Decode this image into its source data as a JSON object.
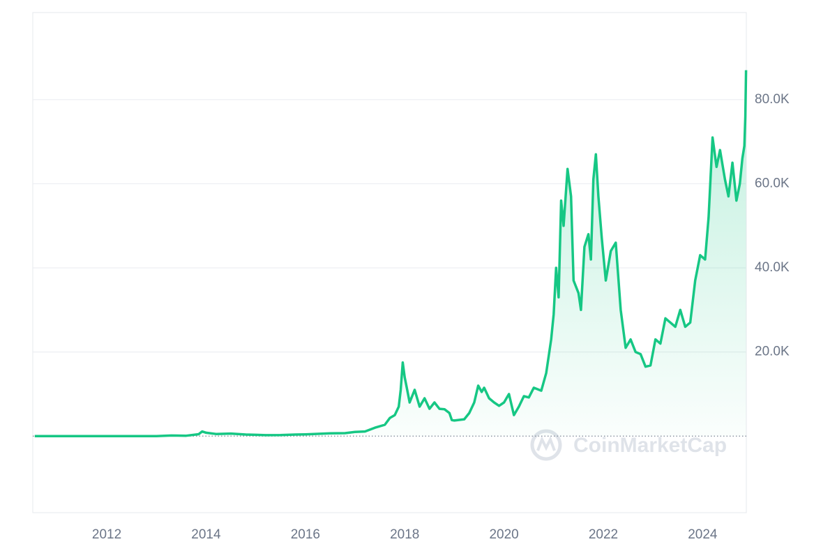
{
  "chart_data": {
    "type": "line",
    "watermark": "CoinMarketCap",
    "x": [
      2010.55,
      2011.0,
      2011.45,
      2011.8,
      2012.0,
      2012.5,
      2013.0,
      2013.3,
      2013.6,
      2013.85,
      2013.92,
      2014.0,
      2014.2,
      2014.5,
      2014.8,
      2015.0,
      2015.2,
      2015.5,
      2015.8,
      2016.0,
      2016.5,
      2016.8,
      2017.0,
      2017.2,
      2017.4,
      2017.6,
      2017.7,
      2017.8,
      2017.88,
      2017.92,
      2017.96,
      2018.0,
      2018.05,
      2018.1,
      2018.2,
      2018.3,
      2018.4,
      2018.5,
      2018.6,
      2018.7,
      2018.8,
      2018.9,
      2018.95,
      2019.0,
      2019.2,
      2019.3,
      2019.4,
      2019.48,
      2019.55,
      2019.6,
      2019.7,
      2019.8,
      2019.9,
      2020.0,
      2020.1,
      2020.2,
      2020.3,
      2020.4,
      2020.5,
      2020.6,
      2020.75,
      2020.85,
      2020.95,
      2021.0,
      2021.05,
      2021.1,
      2021.15,
      2021.2,
      2021.28,
      2021.35,
      2021.4,
      2021.5,
      2021.55,
      2021.62,
      2021.7,
      2021.75,
      2021.8,
      2021.85,
      2021.9,
      2021.97,
      2022.05,
      2022.15,
      2022.25,
      2022.35,
      2022.45,
      2022.55,
      2022.65,
      2022.75,
      2022.85,
      2022.95,
      2023.05,
      2023.15,
      2023.25,
      2023.35,
      2023.45,
      2023.55,
      2023.65,
      2023.75,
      2023.85,
      2023.95,
      2024.05,
      2024.12,
      2024.2,
      2024.28,
      2024.35,
      2024.45,
      2024.52,
      2024.6,
      2024.68,
      2024.75,
      2024.8,
      2024.84,
      2024.86,
      2024.875
    ],
    "series": [
      {
        "color": "#16c784",
        "values": [
          0.07,
          0.3,
          15,
          3,
          5,
          7,
          13,
          140,
          90,
          450,
          1100,
          800,
          500,
          600,
          380,
          300,
          220,
          260,
          380,
          430,
          650,
          700,
          1000,
          1100,
          2000,
          2700,
          4300,
          5000,
          7000,
          11000,
          17500,
          14000,
          11000,
          8000,
          11000,
          7000,
          9000,
          6500,
          8000,
          6500,
          6400,
          5500,
          3800,
          3700,
          4000,
          5500,
          8000,
          12000,
          10500,
          11500,
          9000,
          8000,
          7200,
          8000,
          10000,
          5000,
          7000,
          9500,
          9200,
          11500,
          10800,
          15000,
          23000,
          29000,
          40000,
          33000,
          56000,
          50000,
          63500,
          57000,
          37000,
          34000,
          30000,
          45000,
          48000,
          42000,
          61000,
          67000,
          57000,
          47000,
          37000,
          44000,
          46000,
          30000,
          21000,
          23000,
          20000,
          19500,
          16500,
          16800,
          23000,
          22000,
          28000,
          27000,
          26000,
          30000,
          26000,
          27000,
          37000,
          43000,
          42000,
          52000,
          71000,
          64000,
          68000,
          61000,
          57000,
          65000,
          56000,
          60000,
          66000,
          69000,
          76000,
          87000
        ]
      }
    ],
    "xlim": [
      2010.51,
      2024.88
    ],
    "xticks": [
      2012,
      2014,
      2016,
      2018,
      2020,
      2022,
      2024
    ],
    "ylim": [
      -18200,
      100700
    ],
    "yticks": [
      {
        "value": 20000,
        "label": "20.0K"
      },
      {
        "value": 40000,
        "label": "40.0K"
      },
      {
        "value": 60000,
        "label": "60.0K"
      },
      {
        "value": 80000,
        "label": "80.0K"
      }
    ],
    "grid": true
  }
}
